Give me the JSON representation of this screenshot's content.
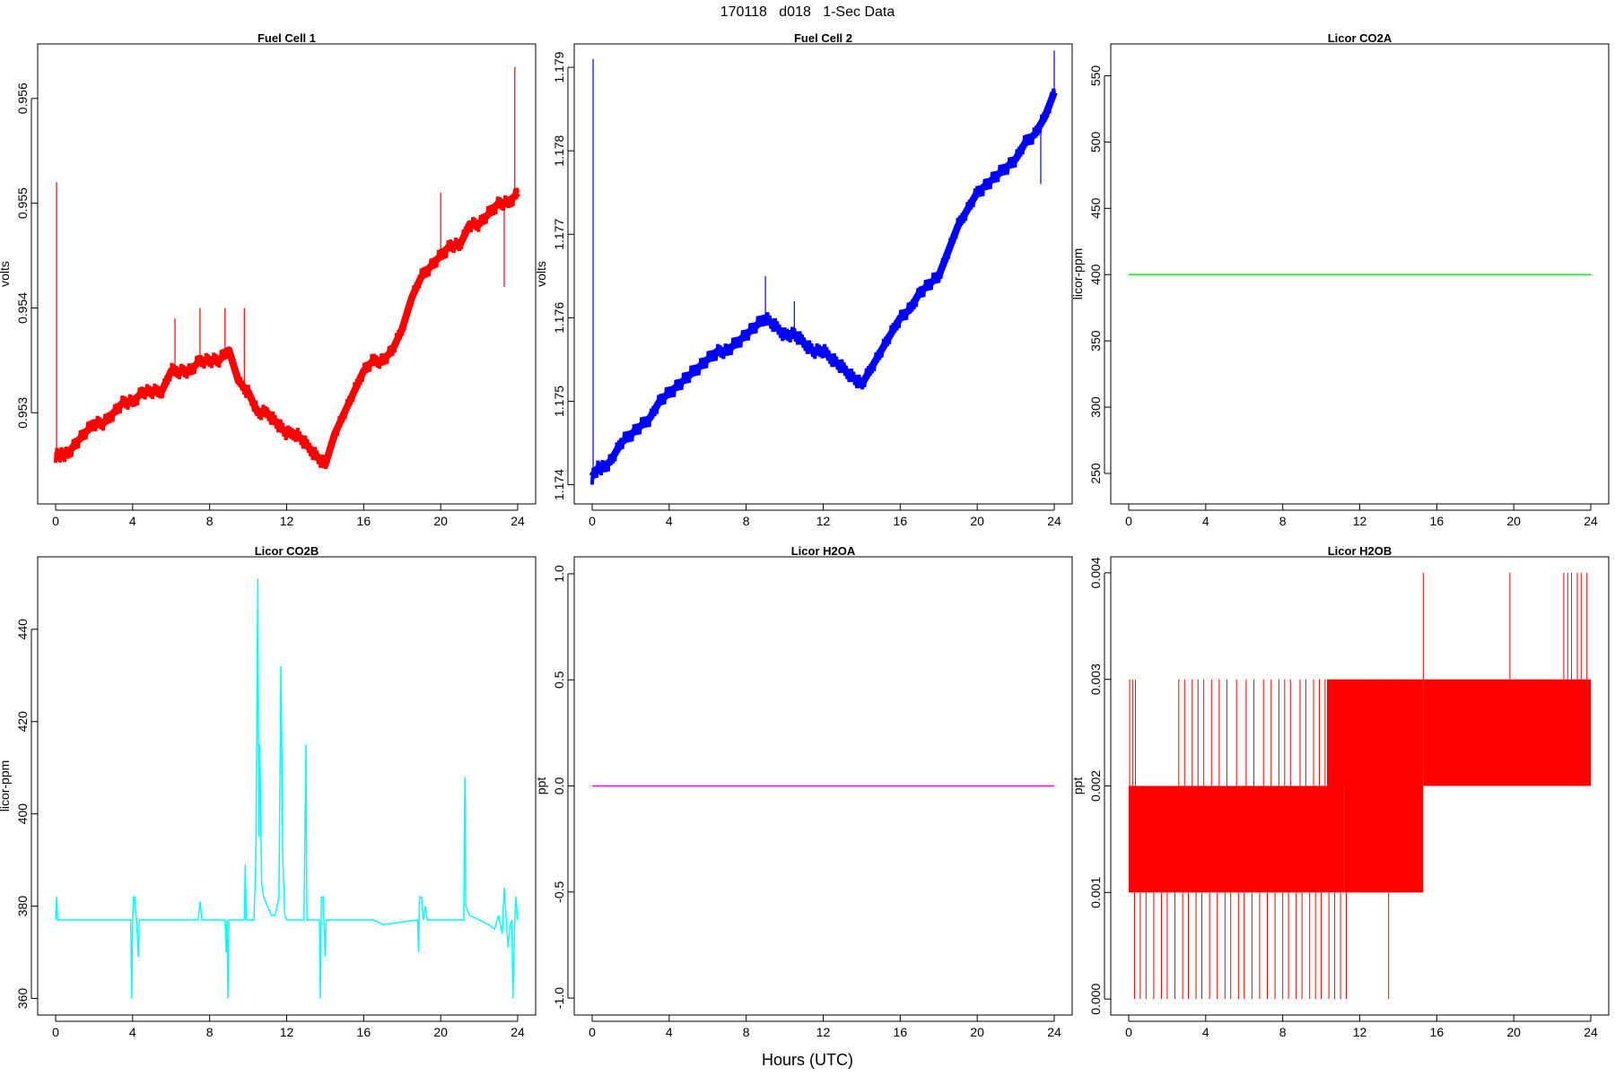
{
  "figure": {
    "title": "170118   d018   1-Sec Data",
    "xlabel": "Hours (UTC)"
  },
  "chart_data": [
    {
      "type": "line",
      "title": "Fuel Cell 1",
      "ylabel": "volts",
      "color": "#ff0000",
      "xlim": [
        0,
        24
      ],
      "ylim": [
        0.95213,
        0.95652
      ],
      "xticks": [
        "0",
        "4",
        "8",
        "12",
        "16",
        "20",
        "24"
      ],
      "yticks": [
        "0.953",
        "0.954",
        "0.955",
        "0.956"
      ],
      "x": [
        0,
        0.3,
        0.6,
        1.0,
        1.5,
        2.0,
        2.5,
        3.0,
        3.5,
        4.0,
        4.5,
        5.0,
        5.5,
        6.0,
        6.5,
        7.0,
        7.5,
        8.0,
        8.5,
        9.0,
        9.5,
        10.0,
        10.5,
        11.0,
        11.5,
        12.0,
        12.5,
        13.0,
        13.5,
        14.0,
        14.5,
        15.0,
        15.5,
        16.0,
        16.5,
        17.0,
        17.5,
        18.0,
        18.5,
        19.0,
        19.5,
        20.0,
        20.5,
        21.0,
        21.5,
        22.0,
        22.5,
        23.0,
        23.5,
        24.0
      ],
      "y": [
        0.9526,
        0.9526,
        0.9526,
        0.9527,
        0.9528,
        0.9529,
        0.9529,
        0.953,
        0.9531,
        0.9531,
        0.9532,
        0.9532,
        0.9532,
        0.9534,
        0.9534,
        0.9534,
        0.9535,
        0.9535,
        0.9535,
        0.9536,
        0.9533,
        0.9532,
        0.953,
        0.953,
        0.9529,
        0.9528,
        0.9528,
        0.9527,
        0.9526,
        0.9525,
        0.9528,
        0.953,
        0.9532,
        0.9534,
        0.9535,
        0.9535,
        0.9536,
        0.9538,
        0.9541,
        0.9543,
        0.9544,
        0.9545,
        0.9546,
        0.9546,
        0.9548,
        0.9548,
        0.9549,
        0.955,
        0.955,
        0.9551
      ],
      "spikes": [
        {
          "x": 0.05,
          "y": 0.9552
        },
        {
          "x": 6.2,
          "y": 0.9539
        },
        {
          "x": 7.5,
          "y": 0.954
        },
        {
          "x": 8.8,
          "y": 0.954
        },
        {
          "x": 9.8,
          "y": 0.954
        },
        {
          "x": 20.0,
          "y": 0.9551
        },
        {
          "x": 23.3,
          "y": 0.9542
        },
        {
          "x": 23.85,
          "y": 0.9563
        }
      ]
    },
    {
      "type": "line",
      "title": "Fuel Cell 2",
      "ylabel": "volts",
      "color": "#0000ff",
      "xlim": [
        0,
        24
      ],
      "ylim": [
        1.17377,
        1.17928
      ],
      "xticks": [
        "0",
        "4",
        "8",
        "12",
        "16",
        "20",
        "24"
      ],
      "yticks": [
        "1.174",
        "1.175",
        "1.176",
        "1.177",
        "1.178",
        "1.179"
      ],
      "x": [
        0,
        0.3,
        0.6,
        1.0,
        1.5,
        2.0,
        2.5,
        3.0,
        3.5,
        4.0,
        4.5,
        5.0,
        5.5,
        6.0,
        6.5,
        7.0,
        7.5,
        8.0,
        8.5,
        9.0,
        9.5,
        10.0,
        10.5,
        11.0,
        11.5,
        12.0,
        12.5,
        13.0,
        13.5,
        14.0,
        14.5,
        15.0,
        15.5,
        16.0,
        16.5,
        17.0,
        17.5,
        18.0,
        18.5,
        19.0,
        19.5,
        20.0,
        20.5,
        21.0,
        21.5,
        22.0,
        22.5,
        23.0,
        23.5,
        24.0
      ],
      "y": [
        1.1741,
        1.1742,
        1.1742,
        1.1743,
        1.1745,
        1.1746,
        1.1747,
        1.1748,
        1.175,
        1.1751,
        1.1752,
        1.1753,
        1.1754,
        1.1755,
        1.1756,
        1.1756,
        1.1757,
        1.1758,
        1.1759,
        1.176,
        1.1759,
        1.1758,
        1.1758,
        1.1757,
        1.1756,
        1.1756,
        1.1755,
        1.1754,
        1.1753,
        1.1752,
        1.1754,
        1.1756,
        1.1758,
        1.176,
        1.1761,
        1.1763,
        1.1764,
        1.1765,
        1.1768,
        1.1771,
        1.1773,
        1.1775,
        1.1776,
        1.1777,
        1.1778,
        1.1779,
        1.1781,
        1.1782,
        1.1784,
        1.1787
      ],
      "spikes": [
        {
          "x": 0.05,
          "y": 1.1791
        },
        {
          "x": 9.0,
          "y": 1.1765
        },
        {
          "x": 10.5,
          "y": 1.1762
        },
        {
          "x": 23.3,
          "y": 1.1776
        },
        {
          "x": 24.0,
          "y": 1.1792
        }
      ]
    },
    {
      "type": "line",
      "title": "Licor CO2A",
      "ylabel": "licor-ppm",
      "color": "#00ff00",
      "xlim": [
        0,
        24
      ],
      "ylim": [
        227,
        574
      ],
      "xticks": [
        "0",
        "4",
        "8",
        "12",
        "16",
        "20",
        "24"
      ],
      "yticks": [
        "250",
        "300",
        "350",
        "400",
        "450",
        "500",
        "550"
      ],
      "x": [
        0,
        24
      ],
      "y": [
        400,
        400
      ]
    },
    {
      "type": "line",
      "title": "Licor CO2B",
      "ylabel": "licor-ppm",
      "color": "#00ffff",
      "xlim": [
        0,
        24
      ],
      "ylim": [
        356.4,
        455.7
      ],
      "xticks": [
        "0",
        "4",
        "8",
        "12",
        "16",
        "20",
        "24"
      ],
      "yticks": [
        "360",
        "380",
        "400",
        "420",
        "440"
      ],
      "x": [
        0,
        0.05,
        0.1,
        3.9,
        3.95,
        4.0,
        4.05,
        4.1,
        4.2,
        4.3,
        4.35,
        4.4,
        7.4,
        7.5,
        7.6,
        8.8,
        8.85,
        8.9,
        8.95,
        9.0,
        9.8,
        9.85,
        9.9,
        10.3,
        10.4,
        10.5,
        10.55,
        10.6,
        10.7,
        10.8,
        11.0,
        11.2,
        11.4,
        11.6,
        11.7,
        11.8,
        11.9,
        12.0,
        12.2,
        12.9,
        13.0,
        13.05,
        13.1,
        13.7,
        13.75,
        13.8,
        13.9,
        14.0,
        14.05,
        14.1,
        16.5,
        17.0,
        18.8,
        18.85,
        18.9,
        19.0,
        19.1,
        19.2,
        19.3,
        21.2,
        21.25,
        21.3,
        21.5,
        22.0,
        22.5,
        22.8,
        23.0,
        23.1,
        23.2,
        23.3,
        23.5,
        23.6,
        23.7,
        23.75,
        23.85,
        23.9,
        24.0
      ],
      "y": [
        377,
        382,
        377,
        377,
        360,
        377,
        382,
        382,
        377,
        369,
        377,
        377,
        377,
        381,
        377,
        377,
        370,
        377,
        360,
        377,
        377,
        389,
        377,
        377,
        390,
        451,
        395,
        415,
        385,
        382,
        380,
        378,
        378,
        382,
        432,
        390,
        378,
        377,
        377,
        377,
        415,
        377,
        377,
        377,
        360,
        382,
        382,
        369,
        377,
        377,
        377,
        376,
        377,
        370,
        382,
        382,
        377,
        380,
        377,
        377,
        408,
        380,
        378,
        377,
        376,
        375,
        378,
        376,
        374,
        384,
        371,
        376,
        377,
        360,
        377,
        382,
        377
      ]
    },
    {
      "type": "line",
      "title": "Licor H2OA",
      "ylabel": "ppt",
      "color": "#ff00ff",
      "xlim": [
        0,
        24
      ],
      "ylim": [
        -1.08,
        1.08
      ],
      "xticks": [
        "0",
        "4",
        "8",
        "12",
        "16",
        "20",
        "24"
      ],
      "yticks": [
        "-1.0",
        "-0.5",
        "0.0",
        "0.5",
        "1.0"
      ],
      "x": [
        0,
        24
      ],
      "y": [
        0,
        0
      ]
    },
    {
      "type": "line",
      "title": "Licor H2OB",
      "ylabel": "ppt",
      "color": "#ff0000",
      "xlim": [
        0,
        24
      ],
      "ylim": [
        -0.00015,
        0.00415
      ],
      "xticks": [
        "0",
        "4",
        "8",
        "12",
        "16",
        "20",
        "24"
      ],
      "yticks": [
        "0.000",
        "0.001",
        "0.002",
        "0.003",
        "0.004"
      ],
      "bands": [
        {
          "x0": 0,
          "x1": 11.2,
          "y0": 0.001,
          "y1": 0.002
        },
        {
          "x0": 11.2,
          "x1": 15.3,
          "y0": 0.001,
          "y1": 0.002
        },
        {
          "x0": 15.3,
          "x1": 24,
          "y0": 0.002,
          "y1": 0.003
        },
        {
          "x0": 10.3,
          "x1": 15.3,
          "y0": 0.002,
          "y1": 0.003
        }
      ],
      "spikes_high": [
        0.05,
        0.2,
        0.35,
        2.6,
        2.9,
        3.3,
        3.6,
        3.9,
        4.3,
        4.7,
        5.1,
        5.6,
        6.1,
        6.5,
        7.0,
        7.4,
        7.8,
        8.1,
        8.4,
        8.9,
        9.2,
        9.6,
        9.9,
        10.2,
        10.5,
        10.8,
        11.2,
        11.6,
        12.0,
        12.6,
        13.2,
        13.9,
        14.5,
        15.0
      ],
      "spikes_low": [
        0.3,
        0.6,
        0.9,
        1.3,
        1.7,
        2.0,
        2.4,
        2.8,
        3.1,
        3.5,
        3.8,
        4.2,
        4.6,
        5.0,
        5.3,
        5.7,
        6.0,
        6.4,
        6.8,
        7.2,
        7.6,
        8.0,
        8.3,
        8.7,
        9.0,
        9.4,
        9.7,
        10.0,
        10.4,
        10.7,
        11.0,
        11.3,
        13.5
      ],
      "spikes_top": [
        15.3,
        19.8,
        22.6,
        22.8,
        23.0,
        23.3,
        23.5,
        23.8
      ]
    }
  ]
}
